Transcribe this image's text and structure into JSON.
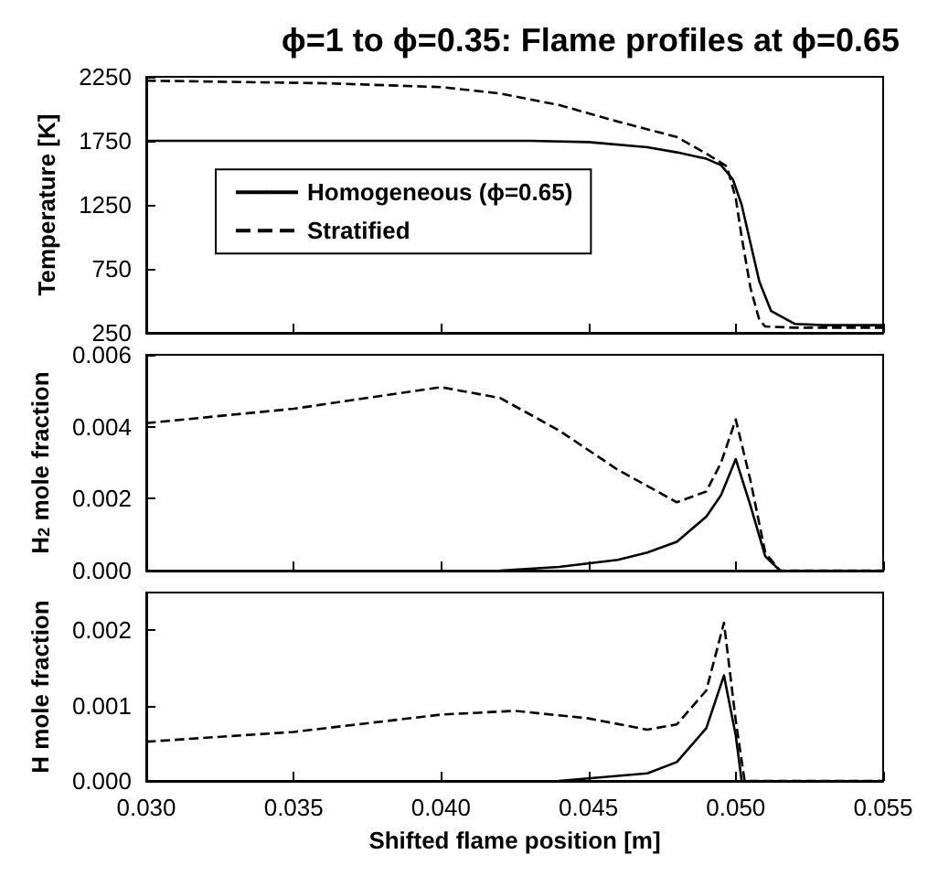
{
  "chart_data": [
    {
      "type": "line",
      "title": "ϕ=1 to ϕ=0.35: Flame profiles at ϕ=0.65",
      "ylabel": "Temperature [K]",
      "xlim": [
        0.03,
        0.055
      ],
      "xticks": [
        {
          "value": 0.03,
          "label": null
        },
        {
          "value": 0.035,
          "label": null
        },
        {
          "value": 0.04,
          "label": null
        },
        {
          "value": 0.045,
          "label": null
        },
        {
          "value": 0.05,
          "label": null
        },
        {
          "value": 0.055,
          "label": null
        }
      ],
      "ylim": [
        250,
        2250
      ],
      "yticks": [
        250,
        750,
        1250,
        1750,
        2250
      ],
      "tick_labels": "y",
      "legend": "left",
      "series": [
        {
          "name": "Homogeneous (ϕ=0.65)",
          "color": "#000000",
          "line_style": "solid",
          "x": [
            0.03,
            0.035,
            0.04,
            0.043,
            0.045,
            0.047,
            0.048,
            0.049,
            0.0495,
            0.0499,
            0.0502,
            0.0505,
            0.0508,
            0.0512,
            0.052,
            0.053,
            0.055
          ],
          "values": [
            1750,
            1750,
            1750,
            1750,
            1740,
            1700,
            1660,
            1610,
            1560,
            1450,
            1250,
            950,
            650,
            420,
            320,
            310,
            310
          ]
        },
        {
          "name": "Stratified",
          "color": "#000000",
          "line_style": "dashed",
          "x": [
            0.03,
            0.036,
            0.04,
            0.042,
            0.044,
            0.046,
            0.048,
            0.049,
            0.0497,
            0.05,
            0.0502,
            0.0505,
            0.0508,
            0.051,
            0.052,
            0.055
          ],
          "values": [
            2220,
            2200,
            2170,
            2120,
            2030,
            1900,
            1780,
            1650,
            1550,
            1300,
            1000,
            600,
            350,
            300,
            290,
            290
          ]
        }
      ]
    },
    {
      "type": "line",
      "ylabel": "H$_{2}$ mole fraction",
      "xlim": [
        0.03,
        0.055
      ],
      "xticks": [
        {
          "value": 0.03,
          "label": null
        },
        {
          "value": 0.035,
          "label": null
        },
        {
          "value": 0.04,
          "label": null
        },
        {
          "value": 0.045,
          "label": null
        },
        {
          "value": 0.05,
          "label": null
        },
        {
          "value": 0.055,
          "label": null
        }
      ],
      "ylim": [
        0,
        0.006
      ],
      "yticks": [
        {
          "value": 0,
          "label": "0.000"
        },
        {
          "value": 0.002,
          "label": "0.002"
        },
        {
          "value": 0.004,
          "label": "0.004"
        },
        {
          "value": 0.006,
          "label": "0.006"
        }
      ],
      "tick_labels": "y",
      "series": [
        {
          "color": "#000000",
          "line_style": "solid",
          "x": [
            0.042,
            0.044,
            0.046,
            0.047,
            0.048,
            0.049,
            0.0495,
            0.05,
            0.0505,
            0.051,
            0.0515
          ],
          "values": [
            0,
            0.0001,
            0.0003,
            0.0005,
            0.0008,
            0.0015,
            0.0021,
            0.0031,
            0.0018,
            0.0004,
            0
          ]
        },
        {
          "color": "#000000",
          "line_style": "dashed",
          "x": [
            0.03,
            0.035,
            0.04,
            0.042,
            0.044,
            0.046,
            0.048,
            0.049,
            0.0495,
            0.05,
            0.0505,
            0.051,
            0.0515,
            0.055
          ],
          "values": [
            0.0041,
            0.0045,
            0.0051,
            0.0048,
            0.0039,
            0.0028,
            0.0019,
            0.0022,
            0.003,
            0.0042,
            0.0025,
            0.0005,
            0,
            0
          ]
        }
      ]
    },
    {
      "type": "line",
      "ylabel": "H mole fraction",
      "xlabel": "Shifted flame position [m]",
      "xlim": [
        0.03,
        0.055
      ],
      "xticks": [
        {
          "value": 0.03,
          "label": "0.030"
        },
        {
          "value": 0.035,
          "label": "0.035"
        },
        {
          "value": 0.04,
          "label": "0.040"
        },
        {
          "value": 0.045,
          "label": "0.045"
        },
        {
          "value": 0.05,
          "label": "0.050"
        },
        {
          "value": 0.055,
          "label": "0.055"
        }
      ],
      "ylim": [
        0,
        0.0025
      ],
      "yticks": [
        {
          "value": 0,
          "label": "0.000"
        },
        {
          "value": 0.001,
          "label": "0.001"
        },
        {
          "value": 0.002,
          "label": "0.002"
        }
      ],
      "series": [
        {
          "color": "#000000",
          "line_style": "solid",
          "x": [
            0.044,
            0.047,
            0.048,
            0.049,
            0.0496,
            0.05,
            0.0502
          ],
          "values": [
            0,
            0.0001,
            0.00025,
            0.0007,
            0.0014,
            0.0006,
            0
          ]
        },
        {
          "color": "#000000",
          "line_style": "dashed",
          "x": [
            0.03,
            0.035,
            0.04,
            0.0425,
            0.045,
            0.047,
            0.048,
            0.049,
            0.0496,
            0.05,
            0.0503,
            0.055
          ],
          "values": [
            0.00052,
            0.00065,
            0.00088,
            0.00093,
            0.00083,
            0.00068,
            0.00075,
            0.0012,
            0.0021,
            0.0008,
            0,
            0
          ]
        }
      ]
    }
  ]
}
